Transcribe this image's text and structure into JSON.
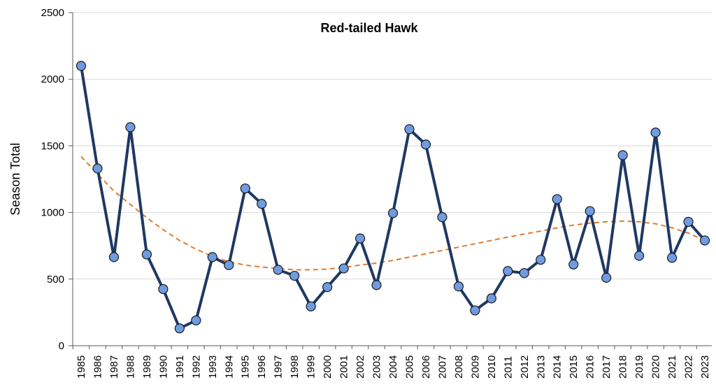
{
  "chart_data": {
    "type": "line",
    "title": "Red-tailed Hawk",
    "xlabel": "",
    "ylabel": "Season Total",
    "ylim": [
      0,
      2500
    ],
    "yticks": [
      0,
      500,
      1000,
      1500,
      2000,
      2500
    ],
    "grid": true,
    "legend": "none",
    "categories": [
      "1985",
      "1986",
      "1987",
      "1988",
      "1989",
      "1990",
      "1991",
      "1992",
      "1993",
      "1994",
      "1995",
      "1996",
      "1997",
      "1998",
      "1999",
      "2000",
      "2001",
      "2002",
      "2003",
      "2004",
      "2005",
      "2006",
      "2007",
      "2008",
      "2009",
      "2010",
      "2011",
      "2012",
      "2013",
      "2014",
      "2015",
      "2016",
      "2017",
      "2018",
      "2019",
      "2020",
      "2021",
      "2022",
      "2023"
    ],
    "series": [
      {
        "kind": "observed",
        "values": [
          2100,
          1330,
          665,
          1640,
          685,
          425,
          130,
          190,
          665,
          605,
          1180,
          1065,
          570,
          525,
          295,
          440,
          580,
          805,
          455,
          995,
          1625,
          1510,
          965,
          445,
          265,
          355,
          560,
          545,
          645,
          1100,
          610,
          1010,
          510,
          1430,
          675,
          1600,
          660,
          930,
          790
        ],
        "line_color": "#1f3864",
        "marker_color": "#6f9be0"
      },
      {
        "kind": "trend",
        "style": "dashed",
        "values": [
          1420,
          1290,
          1160,
          1060,
          960,
          870,
          790,
          725,
          670,
          630,
          605,
          590,
          580,
          570,
          570,
          575,
          588,
          605,
          620,
          640,
          665,
          690,
          715,
          740,
          765,
          790,
          815,
          838,
          860,
          885,
          905,
          920,
          930,
          935,
          930,
          915,
          885,
          845,
          790
        ],
        "line_color": "#e07b2e"
      }
    ]
  }
}
